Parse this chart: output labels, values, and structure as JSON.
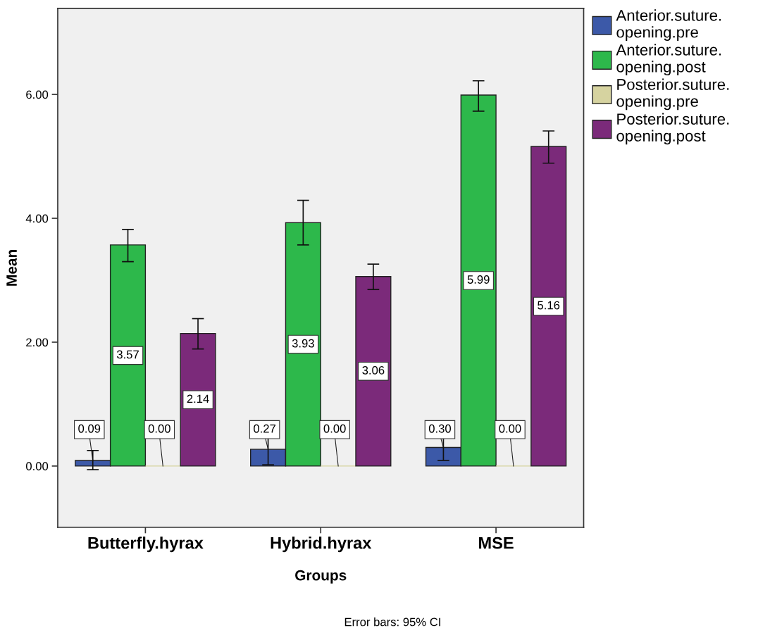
{
  "chart_data": {
    "type": "bar",
    "xlabel": "Groups",
    "ylabel": "Mean",
    "categories": [
      "Butterfly.hyrax",
      "Hybrid.hyrax",
      "MSE"
    ],
    "series": [
      {
        "name": "Anterior.suture.\nopening.pre",
        "color": "#3c59a8",
        "values": [
          0.09,
          0.27,
          0.3
        ],
        "value_labels": [
          "0.09",
          "0.27",
          "0.30"
        ],
        "errors": [
          [
            -0.06,
            0.25
          ],
          [
            0.02,
            0.51
          ],
          [
            0.09,
            0.5
          ]
        ]
      },
      {
        "name": "Anterior.suture.\nopening.post",
        "color": "#2db84b",
        "values": [
          3.57,
          3.93,
          5.99
        ],
        "value_labels": [
          "3.57",
          "3.93",
          "5.99"
        ],
        "errors": [
          [
            3.3,
            3.82
          ],
          [
            3.57,
            4.29
          ],
          [
            5.73,
            6.22
          ]
        ]
      },
      {
        "name": "Posterior.suture.\nopening.pre",
        "color": "#d6d3a0",
        "values": [
          0.0,
          0.0,
          0.0
        ],
        "value_labels": [
          "0.00",
          "0.00",
          "0.00"
        ]
      },
      {
        "name": "Posterior.suture.\nopening.post",
        "color": "#7b2a7a",
        "values": [
          2.14,
          3.06,
          5.16
        ],
        "value_labels": [
          "2.14",
          "3.06",
          "5.16"
        ],
        "errors": [
          [
            1.89,
            2.38
          ],
          [
            2.85,
            3.26
          ],
          [
            4.89,
            5.41
          ]
        ]
      }
    ],
    "ylim": [
      -0.99,
      7.39
    ],
    "yticks": [
      {
        "value": 0,
        "label": "0.00"
      },
      {
        "value": 2,
        "label": "2.00"
      },
      {
        "value": 4,
        "label": "4.00"
      },
      {
        "value": 6,
        "label": "6.00"
      }
    ],
    "legend": "top right",
    "grid": false,
    "annotations": [
      "Error bars: 95% CI"
    ]
  }
}
